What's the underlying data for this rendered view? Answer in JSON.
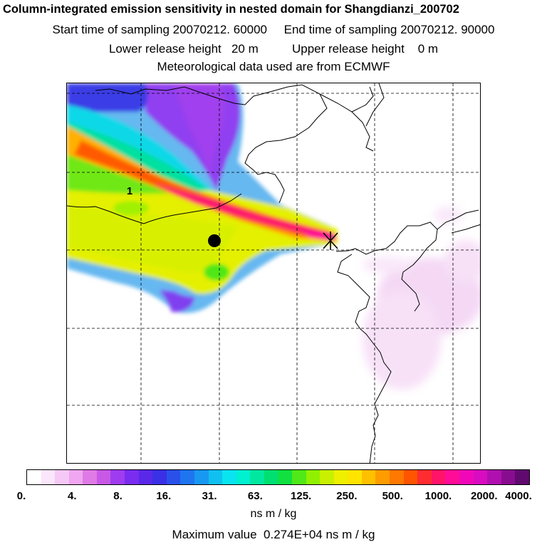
{
  "title": {
    "line1": "Column-integrated emission sensitivity in nested domain for Shangdianzi_200702",
    "start_label": "Start time of sampling 20070212. 60000",
    "end_label": "End time of sampling 20070212. 90000",
    "lower_label": "Lower release height   20 m",
    "upper_label": "Upper release height    0 m",
    "met_label": "Meteorological data used are from ECMWF"
  },
  "map": {
    "contour_label": "1",
    "station_marker": "Shangdianzi receptor",
    "release_marker": "release point"
  },
  "colorbar": {
    "ticks": [
      "0.",
      "4.",
      "8.",
      "16.",
      "31.",
      "63.",
      "125.",
      "250.",
      "500.",
      "1000.",
      "2000.",
      "4000."
    ],
    "colors": [
      "#ffffff",
      "#fbe6fb",
      "#f6c8f6",
      "#f0a6f0",
      "#e07ae6",
      "#c858e6",
      "#a03cf0",
      "#7a2cf0",
      "#5a28e8",
      "#3a30e6",
      "#2a50ea",
      "#1f74f0",
      "#1898f0",
      "#10c0f0",
      "#08e4f0",
      "#00f0d0",
      "#00e8a0",
      "#00e070",
      "#10e040",
      "#50e818",
      "#90f000",
      "#c8f000",
      "#eef000",
      "#ffe400",
      "#ffc000",
      "#ff9c00",
      "#ff7800",
      "#ff5400",
      "#ff2c30",
      "#ff1468",
      "#ff0c98",
      "#f008b8",
      "#d80cc0",
      "#b010b0",
      "#880c90",
      "#600a70"
    ],
    "unit": "ns m / kg"
  },
  "max_value": "Maximum value  0.274E+04 ns m / kg"
}
